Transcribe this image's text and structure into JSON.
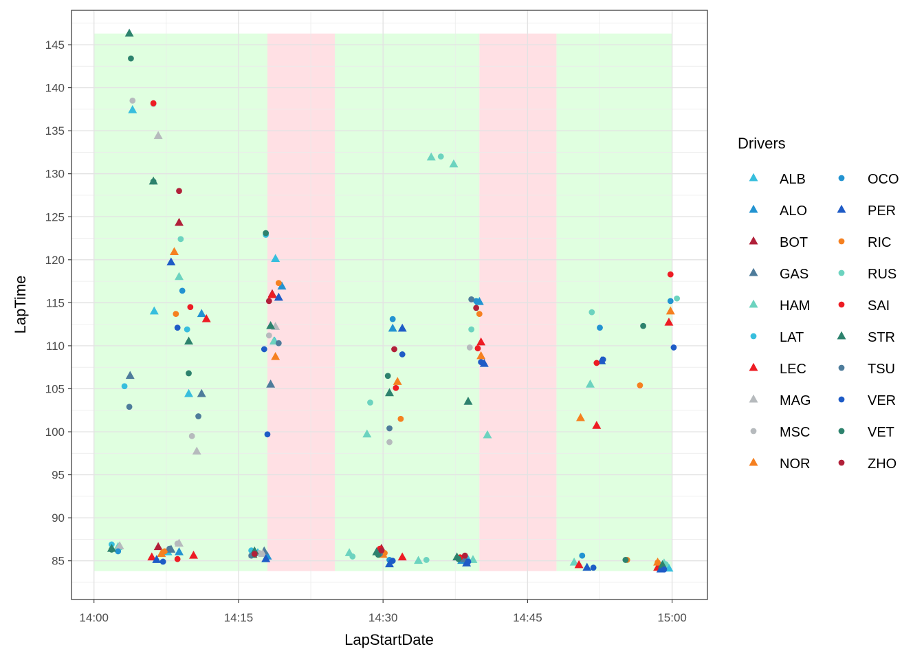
{
  "chart_data": {
    "type": "scatter",
    "xlabel": "LapStartDate",
    "ylabel": "LapTime",
    "x_tick_labels": [
      "14:00",
      "14:15",
      "14:30",
      "14:45",
      "15:00"
    ],
    "y_tick_labels": [
      "85",
      "90",
      "95",
      "100",
      "105",
      "110",
      "115",
      "120",
      "125",
      "130",
      "135",
      "140",
      "145"
    ],
    "xlim": [
      "13:57:40",
      "15:03:40"
    ],
    "ylim": [
      80.5,
      149
    ],
    "grid": true,
    "legend": {
      "title": "Drivers",
      "placement": "right"
    },
    "background_bands": [
      {
        "start": "14:00",
        "end": "14:18",
        "ymin": 83.8,
        "ymax": 146.3,
        "color": "#e0ffe0"
      },
      {
        "start": "14:18",
        "end": "14:25",
        "ymin": 83.8,
        "ymax": 146.3,
        "color": "#ffe0e4"
      },
      {
        "start": "14:25",
        "end": "14:40",
        "ymin": 83.8,
        "ymax": 146.3,
        "color": "#e0ffe0"
      },
      {
        "start": "14:40",
        "end": "14:48",
        "ymin": 83.8,
        "ymax": 146.3,
        "color": "#ffe0e4"
      },
      {
        "start": "14:48",
        "end": "15:00",
        "ymin": 83.8,
        "ymax": 146.3,
        "color": "#e0ffe0"
      }
    ],
    "drivers": [
      {
        "name": "ALB",
        "shape": "triangle",
        "color": "#37bedd"
      },
      {
        "name": "ALO",
        "shape": "triangle",
        "color": "#2293d1"
      },
      {
        "name": "BOT",
        "shape": "triangle",
        "color": "#b12039"
      },
      {
        "name": "GAS",
        "shape": "triangle",
        "color": "#4e7c9b"
      },
      {
        "name": "HAM",
        "shape": "triangle",
        "color": "#6cd3bf"
      },
      {
        "name": "LAT",
        "shape": "circle",
        "color": "#37bedd"
      },
      {
        "name": "LEC",
        "shape": "triangle",
        "color": "#ed1c24"
      },
      {
        "name": "MAG",
        "shape": "triangle",
        "color": "#b6babd"
      },
      {
        "name": "MSC",
        "shape": "circle",
        "color": "#b6babd"
      },
      {
        "name": "NOR",
        "shape": "triangle",
        "color": "#f58020"
      },
      {
        "name": "OCO",
        "shape": "circle",
        "color": "#2293d1"
      },
      {
        "name": "PER",
        "shape": "triangle",
        "color": "#1e5bc6"
      },
      {
        "name": "RIC",
        "shape": "circle",
        "color": "#f58020"
      },
      {
        "name": "RUS",
        "shape": "circle",
        "color": "#6cd3bf"
      },
      {
        "name": "SAI",
        "shape": "circle",
        "color": "#ed1c24"
      },
      {
        "name": "STR",
        "shape": "triangle",
        "color": "#2d826d"
      },
      {
        "name": "TSU",
        "shape": "circle",
        "color": "#4e7c9b"
      },
      {
        "name": "VER",
        "shape": "circle",
        "color": "#1e5bc6"
      },
      {
        "name": "VET",
        "shape": "circle",
        "color": "#2d826d"
      },
      {
        "name": "ZHO",
        "shape": "circle",
        "color": "#b12039"
      }
    ],
    "series": [
      {
        "name": "ALB",
        "points": [
          [
            "14:04:00",
            137.4
          ],
          [
            "14:06:15",
            114.0
          ],
          [
            "14:09:50",
            104.4
          ],
          [
            "14:18:50",
            120.1
          ],
          [
            "14:18:45",
            110.5
          ],
          [
            "14:07:40",
            86.0
          ],
          [
            "14:17:00",
            85.9
          ],
          [
            "14:38:50",
            85.1
          ],
          [
            "14:59:40",
            84.1
          ]
        ]
      },
      {
        "name": "ALO",
        "points": [
          [
            "14:11:10",
            113.7
          ],
          [
            "14:19:30",
            116.9
          ],
          [
            "14:31:00",
            112.0
          ],
          [
            "14:40:00",
            115.1
          ],
          [
            "14:08:50",
            86.0
          ],
          [
            "14:18:00",
            85.5
          ],
          [
            "14:38:10",
            85.0
          ],
          [
            "14:58:50",
            84.3
          ]
        ]
      },
      {
        "name": "BOT",
        "points": [
          [
            "14:08:50",
            124.3
          ],
          [
            "14:18:30",
            116.0
          ],
          [
            "14:06:40",
            86.6
          ],
          [
            "14:16:30",
            85.7
          ],
          [
            "14:29:50",
            86.4
          ]
        ]
      },
      {
        "name": "GAS",
        "points": [
          [
            "14:03:45",
            106.5
          ],
          [
            "14:11:10",
            104.4
          ],
          [
            "14:18:20",
            105.5
          ],
          [
            "14:08:00",
            86.3
          ],
          [
            "14:17:40",
            86.1
          ],
          [
            "14:38:30",
            85.2
          ]
        ]
      },
      {
        "name": "HAM",
        "points": [
          [
            "14:08:50",
            118.0
          ],
          [
            "14:18:40",
            110.5
          ],
          [
            "14:28:20",
            99.7
          ],
          [
            "14:35:00",
            131.9
          ],
          [
            "14:37:20",
            131.1
          ],
          [
            "14:40:50",
            99.6
          ],
          [
            "14:51:30",
            105.5
          ],
          [
            "14:02:30",
            86.6
          ],
          [
            "14:26:30",
            85.9
          ],
          [
            "14:33:40",
            85.0
          ],
          [
            "14:39:20",
            85.1
          ],
          [
            "14:49:50",
            84.8
          ],
          [
            "14:59:10",
            84.7
          ]
        ]
      },
      {
        "name": "LAT",
        "points": [
          [
            "14:03:10",
            105.3
          ],
          [
            "14:09:40",
            111.9
          ],
          [
            "14:17:50",
            122.9
          ],
          [
            "14:01:50",
            86.9
          ],
          [
            "14:16:20",
            86.2
          ]
        ]
      },
      {
        "name": "LEC",
        "points": [
          [
            "14:11:40",
            113.1
          ],
          [
            "14:18:30",
            115.9
          ],
          [
            "14:40:10",
            110.4
          ],
          [
            "14:52:10",
            100.7
          ],
          [
            "14:59:40",
            112.7
          ],
          [
            "14:06:00",
            85.4
          ],
          [
            "14:10:20",
            85.6
          ],
          [
            "14:32:00",
            85.4
          ],
          [
            "14:50:20",
            84.5
          ],
          [
            "14:58:30",
            84.2
          ]
        ]
      },
      {
        "name": "MAG",
        "points": [
          [
            "14:06:40",
            134.4
          ],
          [
            "14:10:40",
            97.7
          ],
          [
            "14:18:50",
            112.2
          ],
          [
            "14:08:50",
            87.0
          ],
          [
            "14:17:30",
            85.8
          ],
          [
            "14:02:40",
            86.7
          ]
        ]
      },
      {
        "name": "MSC",
        "points": [
          [
            "14:04:00",
            138.5
          ],
          [
            "14:06:10",
            138.1
          ],
          [
            "14:10:10",
            99.5
          ],
          [
            "14:18:10",
            111.2
          ],
          [
            "14:30:40",
            98.8
          ],
          [
            "14:39:00",
            109.8
          ],
          [
            "14:08:40",
            87.0
          ],
          [
            "14:17:10",
            85.9
          ],
          [
            "14:29:40",
            86.0
          ]
        ]
      },
      {
        "name": "NOR",
        "points": [
          [
            "14:08:20",
            120.9
          ],
          [
            "14:18:50",
            108.7
          ],
          [
            "14:31:30",
            105.8
          ],
          [
            "14:40:10",
            108.8
          ],
          [
            "14:50:30",
            101.6
          ],
          [
            "14:59:50",
            114.0
          ],
          [
            "14:07:00",
            85.8
          ],
          [
            "14:30:00",
            85.7
          ],
          [
            "14:58:30",
            84.8
          ]
        ]
      },
      {
        "name": "OCO",
        "points": [
          [
            "14:09:10",
            116.4
          ],
          [
            "14:31:00",
            113.1
          ],
          [
            "14:39:40",
            115.2
          ],
          [
            "14:52:30",
            112.1
          ],
          [
            "14:59:50",
            115.2
          ],
          [
            "14:02:30",
            86.1
          ],
          [
            "14:30:40",
            85.1
          ],
          [
            "14:50:40",
            85.6
          ]
        ]
      },
      {
        "name": "PER",
        "points": [
          [
            "14:08:00",
            119.7
          ],
          [
            "14:19:10",
            115.6
          ],
          [
            "14:32:00",
            112.0
          ],
          [
            "14:40:30",
            107.9
          ],
          [
            "14:52:40",
            108.2
          ],
          [
            "14:06:30",
            85.1
          ],
          [
            "14:17:50",
            85.2
          ],
          [
            "14:30:40",
            84.6
          ],
          [
            "14:38:40",
            84.7
          ],
          [
            "14:51:10",
            84.2
          ],
          [
            "14:58:50",
            84.0
          ]
        ]
      },
      {
        "name": "RIC",
        "points": [
          [
            "14:08:30",
            113.7
          ],
          [
            "14:19:10",
            117.3
          ],
          [
            "14:31:50",
            101.5
          ],
          [
            "14:40:00",
            113.7
          ],
          [
            "14:56:40",
            105.4
          ],
          [
            "14:30:10",
            85.9
          ],
          [
            "14:55:20",
            85.1
          ],
          [
            "14:58:30",
            84.8
          ],
          [
            "14:07:20",
            86.1
          ]
        ]
      },
      {
        "name": "RUS",
        "points": [
          [
            "14:09:00",
            122.4
          ],
          [
            "14:28:40",
            103.4
          ],
          [
            "14:36:00",
            132.0
          ],
          [
            "14:39:10",
            111.9
          ],
          [
            "14:51:40",
            113.9
          ],
          [
            "15:00:30",
            115.5
          ],
          [
            "14:26:50",
            85.5
          ],
          [
            "14:34:30",
            85.1
          ],
          [
            "14:59:20",
            84.6
          ]
        ]
      },
      {
        "name": "SAI",
        "points": [
          [
            "14:06:10",
            138.2
          ],
          [
            "14:10:00",
            114.5
          ],
          [
            "14:31:20",
            105.1
          ],
          [
            "14:39:50",
            109.7
          ],
          [
            "14:52:10",
            108.0
          ],
          [
            "14:59:50",
            118.3
          ],
          [
            "14:08:40",
            85.2
          ],
          [
            "14:29:40",
            86.4
          ],
          [
            "14:38:00",
            85.4
          ]
        ]
      },
      {
        "name": "STR",
        "points": [
          [
            "14:03:40",
            146.3
          ],
          [
            "14:06:10",
            129.1
          ],
          [
            "14:09:50",
            110.5
          ],
          [
            "14:18:20",
            112.3
          ],
          [
            "14:30:40",
            104.5
          ],
          [
            "14:38:50",
            103.5
          ],
          [
            "14:01:50",
            86.4
          ],
          [
            "14:16:40",
            86.1
          ],
          [
            "14:29:20",
            86.0
          ],
          [
            "14:37:40",
            85.4
          ],
          [
            "14:59:00",
            84.5
          ]
        ]
      },
      {
        "name": "TSU",
        "points": [
          [
            "14:03:40",
            102.9
          ],
          [
            "14:10:50",
            101.8
          ],
          [
            "14:19:10",
            110.3
          ],
          [
            "14:30:40",
            100.4
          ],
          [
            "14:39:10",
            115.4
          ],
          [
            "14:07:50",
            86.4
          ],
          [
            "14:16:20",
            85.6
          ],
          [
            "14:29:40",
            85.8
          ]
        ]
      },
      {
        "name": "VER",
        "points": [
          [
            "14:08:40",
            112.1
          ],
          [
            "14:17:40",
            109.6
          ],
          [
            "14:18:00",
            99.7
          ],
          [
            "14:32:00",
            109.0
          ],
          [
            "14:40:10",
            108.1
          ],
          [
            "14:52:50",
            108.4
          ],
          [
            "15:00:10",
            109.8
          ],
          [
            "14:07:10",
            84.9
          ],
          [
            "14:31:00",
            85.0
          ],
          [
            "14:38:50",
            84.9
          ],
          [
            "14:51:50",
            84.2
          ],
          [
            "14:59:10",
            84.0
          ]
        ]
      },
      {
        "name": "VET",
        "points": [
          [
            "14:03:50",
            143.4
          ],
          [
            "14:06:10",
            129.1
          ],
          [
            "14:09:50",
            106.8
          ],
          [
            "14:17:50",
            123.1
          ],
          [
            "14:30:30",
            106.5
          ],
          [
            "14:57:00",
            112.3
          ],
          [
            "14:01:50",
            86.3
          ],
          [
            "14:16:40",
            85.7
          ],
          [
            "14:29:30",
            85.7
          ],
          [
            "14:37:50",
            85.2
          ],
          [
            "14:55:10",
            85.1
          ]
        ]
      },
      {
        "name": "ZHO",
        "points": [
          [
            "14:08:50",
            128.0
          ],
          [
            "14:18:10",
            115.2
          ],
          [
            "14:31:10",
            109.6
          ],
          [
            "14:39:40",
            114.4
          ],
          [
            "14:29:50",
            86.2
          ],
          [
            "14:16:40",
            85.8
          ],
          [
            "14:38:30",
            85.6
          ]
        ]
      }
    ]
  }
}
